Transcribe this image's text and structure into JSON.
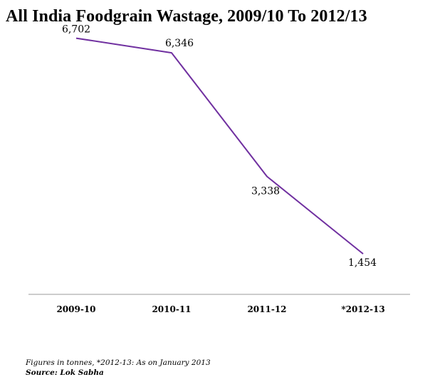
{
  "chart_data": {
    "type": "line",
    "title": "All India Foodgrain Wastage, 2009/10 To 2012/13",
    "categories": [
      "2009-10",
      "2010-11",
      "2011-12",
      "*2012-13"
    ],
    "series": [
      {
        "values": [
          6702,
          6346,
          3338,
          1454
        ],
        "labels": [
          "6,702",
          "6,346",
          "3,338",
          "1,454"
        ]
      }
    ],
    "ylim": [
      0,
      7500
    ],
    "grid": false,
    "legend": "none",
    "line_color": "#7030a0",
    "axis_color": "#999999"
  },
  "footer": {
    "note": "Figures in tonnes, *2012-13: As on January 2013",
    "source": "Source: Lok Sabha"
  }
}
